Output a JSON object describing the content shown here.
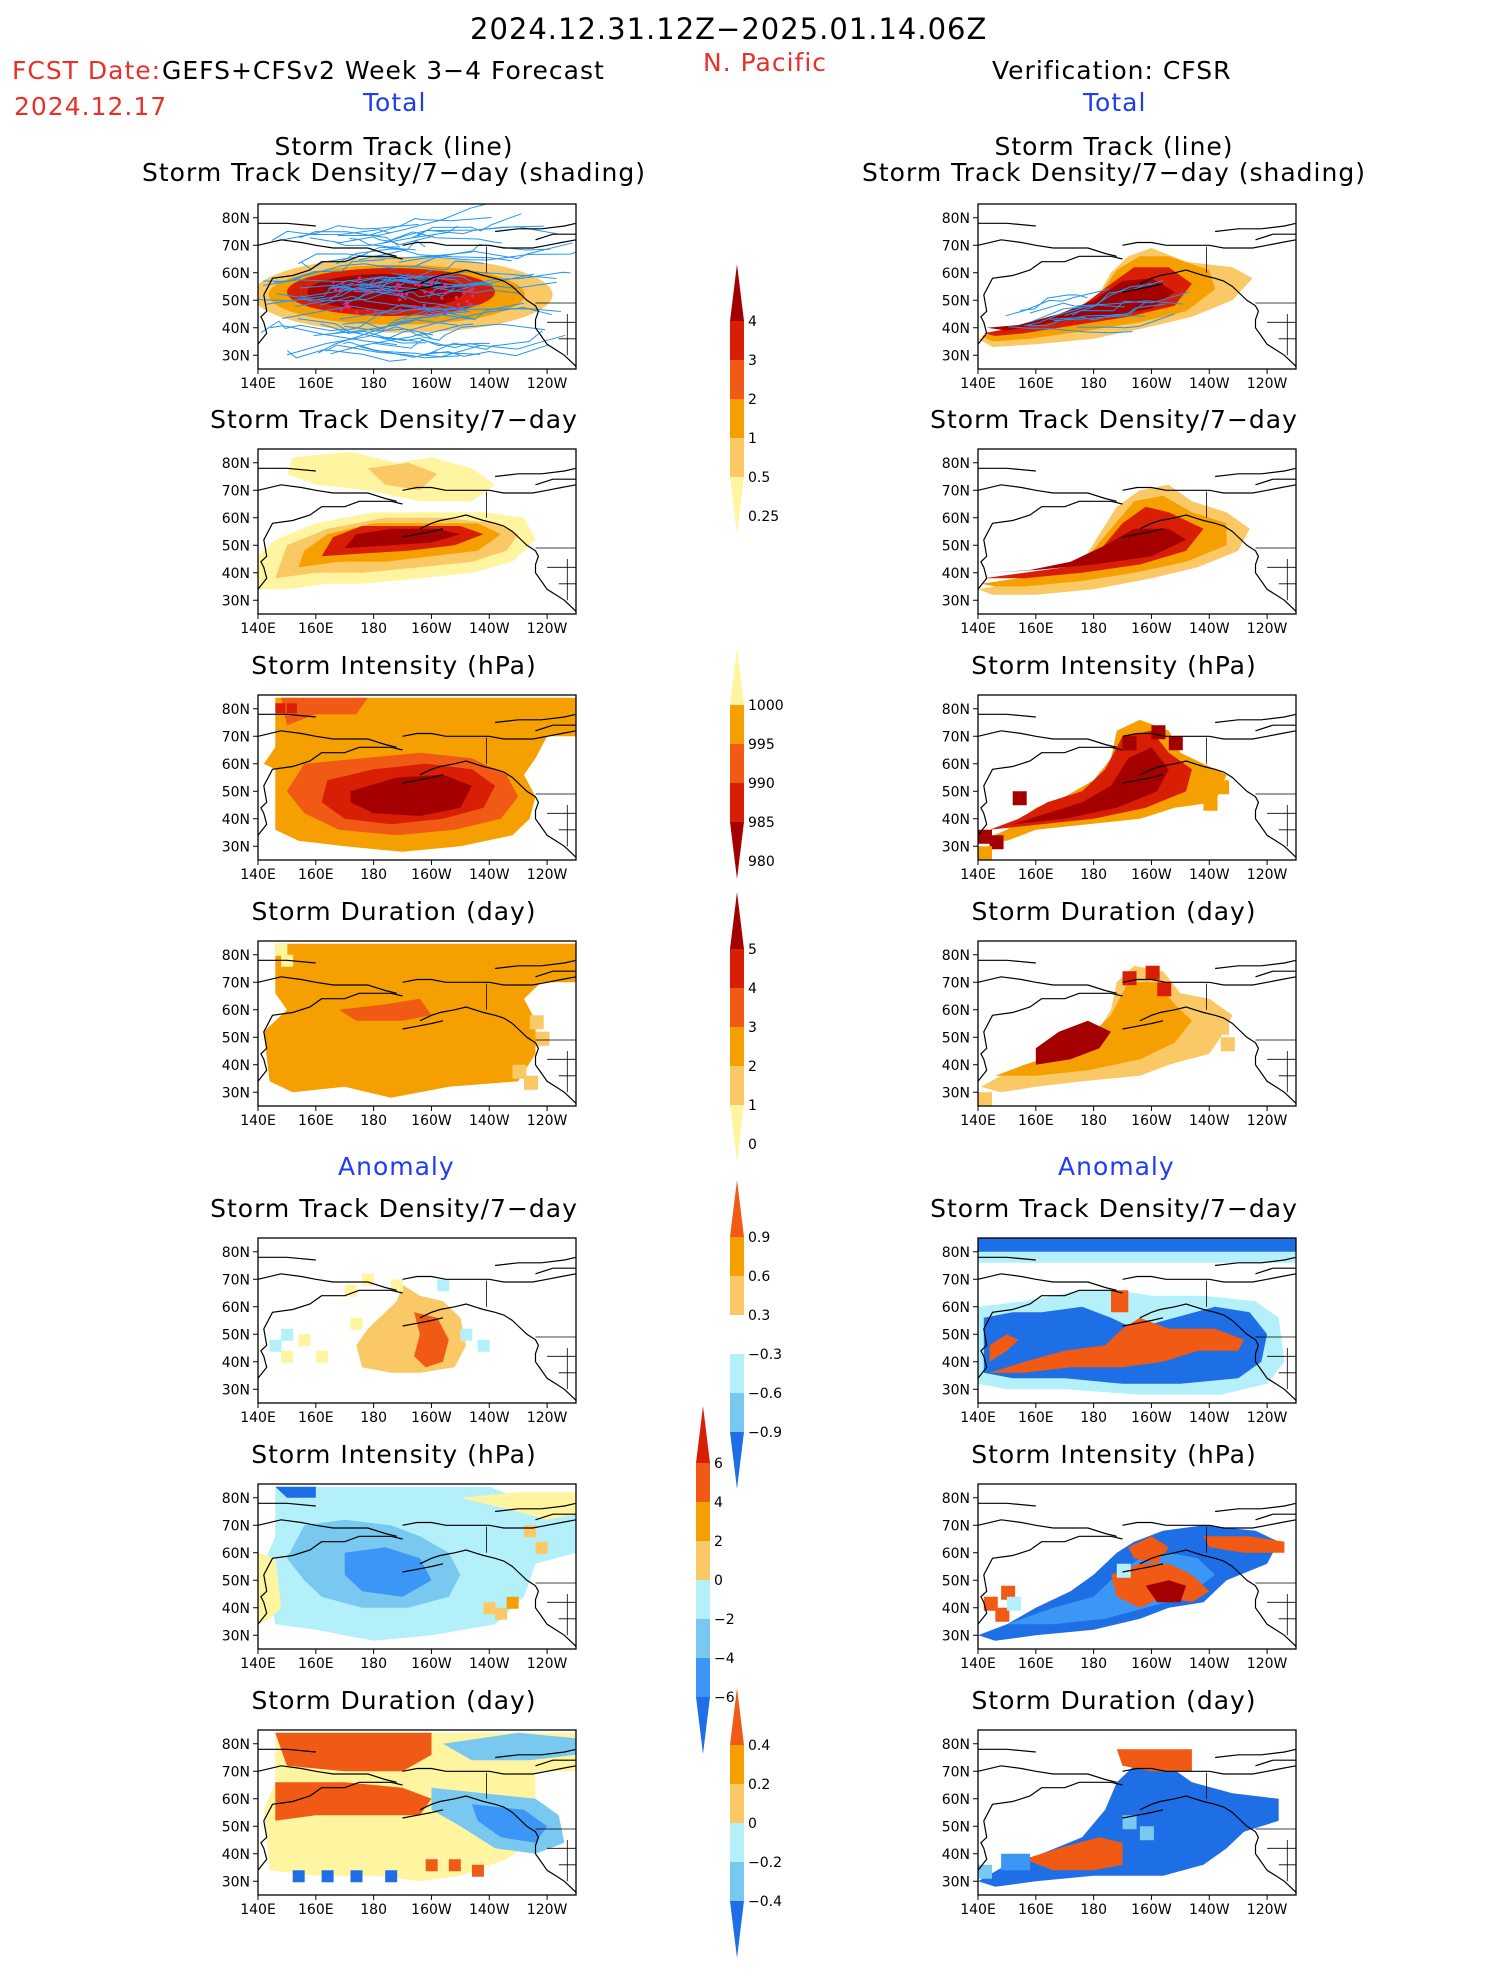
{
  "header": {
    "period": "2024.12.31.12Z−2025.01.14.06Z",
    "region": "N. Pacific",
    "fcst_label": "FCST Date:",
    "fcst_model": "GEFS+CFSv2 Week 3−4 Forecast",
    "fcst_date": "2024.12.17",
    "verification": "Verification: CFSR",
    "total_left": "Total",
    "total_right": "Total",
    "anomaly_left": "Anomaly",
    "anomaly_right": "Anomaly"
  },
  "panel_titles": {
    "track_line": "Storm Track (line)",
    "track_density_shading": "Storm Track Density/7−day (shading)",
    "track_density": "Storm Track Density/7−day",
    "intensity": "Storm Intensity (hPa)",
    "duration": "Storm Duration (day)"
  },
  "axes": {
    "lat_ticks": [
      "80N",
      "70N",
      "60N",
      "50N",
      "40N",
      "30N"
    ],
    "lon_ticks": [
      "140E",
      "160E",
      "180",
      "160W",
      "140W",
      "120W"
    ]
  },
  "colorbars": {
    "density_total": [
      "4",
      "3",
      "2",
      "1",
      "0.5",
      "0.25"
    ],
    "intensity_total": [
      "1000",
      "995",
      "990",
      "985",
      "980"
    ],
    "duration_total": [
      "5",
      "4",
      "3",
      "2",
      "1",
      "0"
    ],
    "density_anom": [
      "0.9",
      "0.6",
      "0.3",
      "−0.3",
      "−0.6",
      "−0.9"
    ],
    "intensity_anom": [
      "6",
      "4",
      "2",
      "0",
      "−2",
      "−4",
      "−6"
    ],
    "duration_anom": [
      "0.4",
      "0.2",
      "0",
      "−0.2",
      "−0.4"
    ]
  },
  "colors": {
    "dark_red": "#a50000",
    "red": "#d81e05",
    "orange_red": "#f05a14",
    "orange": "#f5a000",
    "light_orange": "#fac864",
    "pale_yellow": "#fff5a0",
    "light_blue": "#b4f0fa",
    "sky_blue": "#78c8f0",
    "medium_blue": "#3c96f5",
    "deep_blue": "#1e6ee6",
    "track_blue": "#2196f3",
    "title_red": "#e8302a",
    "title_blue": "#1f3cf0"
  }
}
